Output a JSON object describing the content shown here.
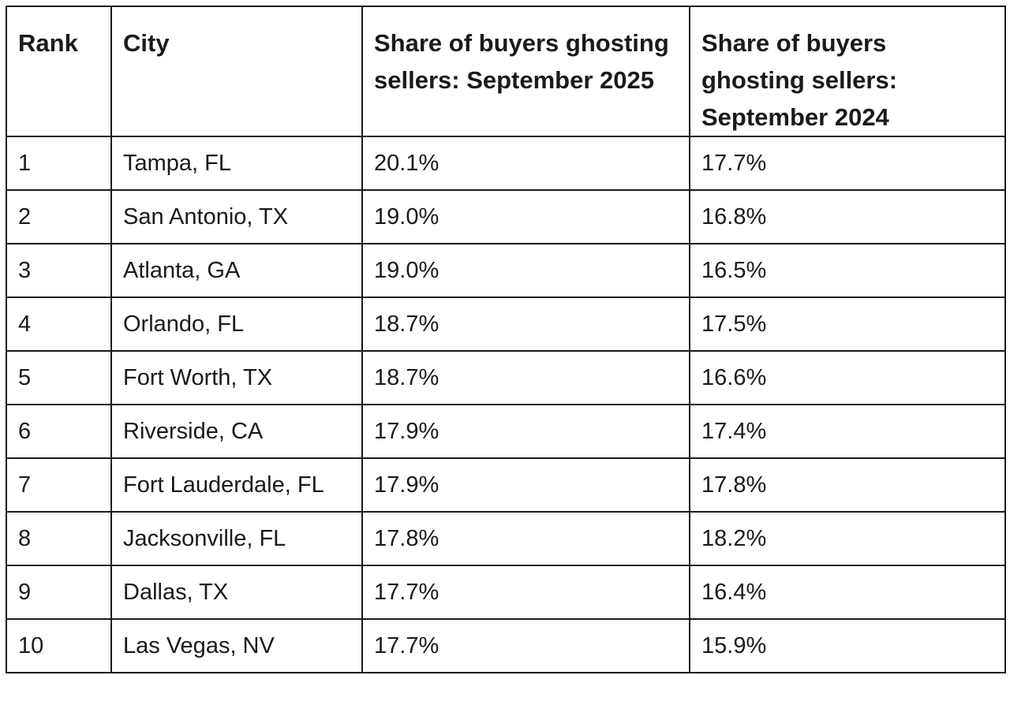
{
  "table": {
    "headers": {
      "rank": "Rank",
      "city": "City",
      "share_2025": "Share of buyers ghosting sellers: September 2025",
      "share_2024": "Share of buyers ghosting sellers: September 2024"
    },
    "rows": [
      {
        "rank": "1",
        "city": "Tampa, FL",
        "share_2025": "20.1%",
        "share_2024": "17.7%"
      },
      {
        "rank": "2",
        "city": "San Antonio, TX",
        "share_2025": "19.0%",
        "share_2024": "16.8%"
      },
      {
        "rank": "3",
        "city": "Atlanta, GA",
        "share_2025": "19.0%",
        "share_2024": "16.5%"
      },
      {
        "rank": "4",
        "city": "Orlando, FL",
        "share_2025": "18.7%",
        "share_2024": "17.5%"
      },
      {
        "rank": "5",
        "city": "Fort Worth, TX",
        "share_2025": "18.7%",
        "share_2024": "16.6%"
      },
      {
        "rank": "6",
        "city": "Riverside, CA",
        "share_2025": "17.9%",
        "share_2024": "17.4%"
      },
      {
        "rank": "7",
        "city": "Fort Lauderdale, FL",
        "share_2025": "17.9%",
        "share_2024": "17.8%"
      },
      {
        "rank": "8",
        "city": "Jacksonville, FL",
        "share_2025": "17.8%",
        "share_2024": "18.2%"
      },
      {
        "rank": "9",
        "city": "Dallas, TX",
        "share_2025": "17.7%",
        "share_2024": "16.4%"
      },
      {
        "rank": "10",
        "city": "Las Vegas, NV",
        "share_2025": "17.7%",
        "share_2024": "15.9%"
      }
    ]
  }
}
